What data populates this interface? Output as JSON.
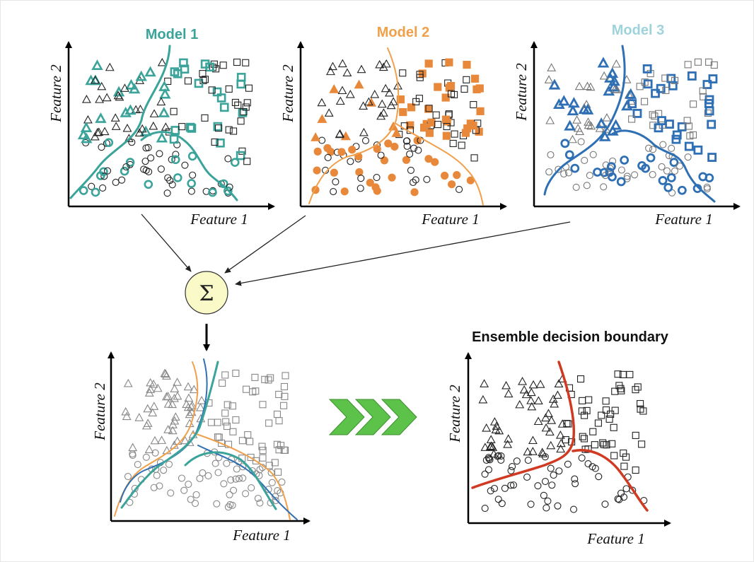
{
  "panels": {
    "model1": {
      "title": "Model 1",
      "xlabel": "Feature 1",
      "ylabel": "Feature 2"
    },
    "model2": {
      "title": "Model 2",
      "xlabel": "Feature 1",
      "ylabel": "Feature 2"
    },
    "model3": {
      "title": "Model 3",
      "xlabel": "Feature 1",
      "ylabel": "Feature 2"
    },
    "combined": {
      "xlabel": "Feature 1",
      "ylabel": "Feature 2"
    },
    "ensemble": {
      "title": "Ensemble decision boundary",
      "xlabel": "Feature 1",
      "ylabel": "Feature 2"
    }
  },
  "sum_symbol": "Σ",
  "colors": {
    "model1": "#3aa39a",
    "model2": "#f0a04b",
    "model2_fill": "#e8883a",
    "model3": "#2f6fb4",
    "model3_title": "#9fd3dc",
    "ensemble_boundary": "#d03a22",
    "sum_circle_fill": "#fafac8",
    "chevron": "#5cc24a"
  }
}
